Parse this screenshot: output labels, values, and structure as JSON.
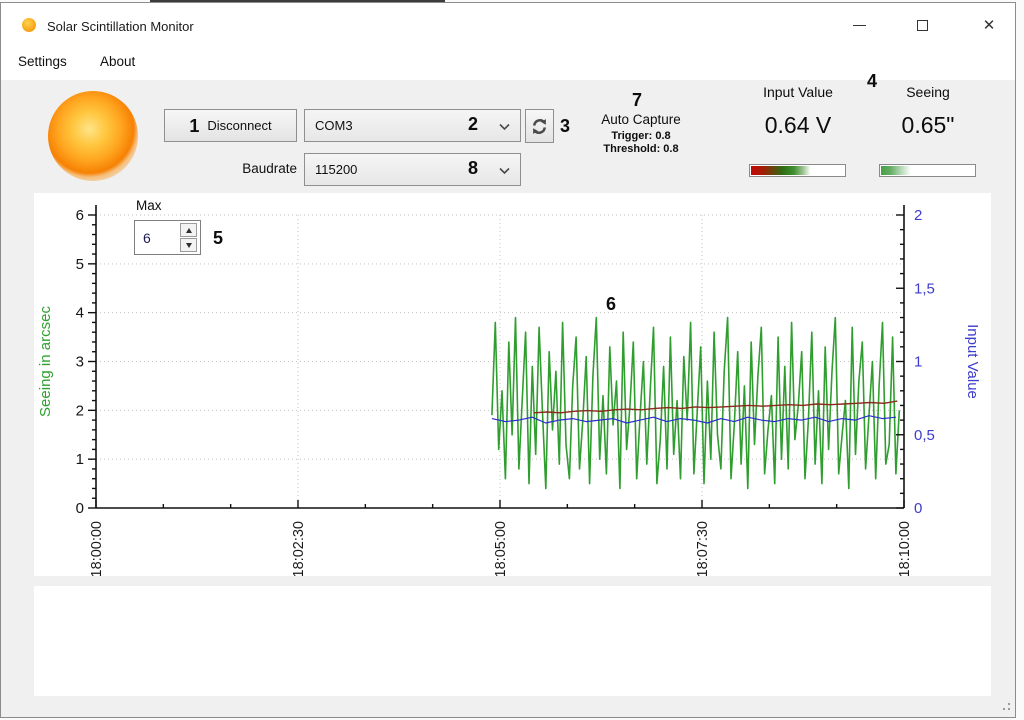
{
  "window": {
    "title": "Solar Scintillation Monitor",
    "controls": {
      "close_glyph": "✕"
    }
  },
  "menu": {
    "items": [
      {
        "label": "Settings"
      },
      {
        "label": "About"
      }
    ]
  },
  "toolbar": {
    "disconnect_label": "Disconnect",
    "port": {
      "value": "COM3"
    },
    "baudrate_label": "Baudrate",
    "baudrate": {
      "value": "115200"
    },
    "refresh_icon": "refresh-ports",
    "auto_capture": {
      "title": "Auto Capture",
      "trigger": "Trigger: 0.8",
      "threshold": "Threshold: 0.8"
    },
    "input_value": {
      "label": "Input Value",
      "value": "0.64 V"
    },
    "seeing": {
      "label": "Seeing",
      "value": "0.65\""
    }
  },
  "callouts": {
    "n1": "1",
    "n2": "2",
    "n3": "3",
    "n4": "4",
    "n5": "5",
    "n6": "6",
    "n7": "7",
    "n8": "8"
  },
  "max_spinner": {
    "label": "Max",
    "value": "6"
  },
  "chart_data": {
    "type": "line",
    "title": "",
    "grid": "dotted",
    "x_axis": {
      "range_s": [
        0,
        600
      ],
      "ticks_s": [
        0,
        150,
        300,
        450,
        600
      ],
      "tick_labels": [
        "18:00:00",
        "18:02:30",
        "18:05:00",
        "18:07:30",
        "18:10:00"
      ],
      "minor_step_s": 50
    },
    "left_axis": {
      "label": "Seeing in arcsec",
      "range": [
        0,
        6
      ],
      "major_step": 1,
      "minor_step": 0.2,
      "color": "#2fa12f",
      "tick_color": "#151515"
    },
    "right_axis": {
      "label": "Input Value",
      "range": [
        0,
        2
      ],
      "major_step": 0.5,
      "minor_step": 0.1,
      "tick_labels": [
        "0",
        "0,5",
        "1",
        "1,5",
        "2"
      ],
      "color": "#3c3ccd"
    },
    "series": [
      {
        "name": "seeing",
        "axis": "left",
        "color": "#2f9e2f",
        "width": 1.6,
        "start_s": 294,
        "step_s": 2.5,
        "values": [
          1.9,
          3.8,
          1.2,
          2.4,
          0.6,
          3.4,
          1.5,
          3.9,
          0.8,
          2.2,
          3.6,
          0.5,
          2.9,
          1.1,
          3.7,
          2.0,
          0.4,
          3.2,
          1.6,
          2.8,
          0.9,
          3.8,
          1.3,
          0.6,
          2.5,
          3.5,
          0.8,
          1.8,
          3.1,
          0.5,
          2.7,
          3.9,
          1.0,
          2.3,
          0.7,
          3.3,
          1.7,
          2.6,
          0.4,
          3.6,
          1.2,
          2.1,
          3.4,
          0.6,
          1.9,
          3.0,
          0.9,
          2.4,
          3.7,
          0.5,
          1.4,
          2.9,
          0.8,
          3.5,
          1.1,
          2.2,
          0.6,
          3.1,
          1.8,
          3.8,
          0.7,
          2.0,
          3.3,
          0.5,
          2.6,
          1.0,
          3.6,
          1.5,
          0.8,
          2.8,
          3.9,
          0.6,
          1.7,
          3.2,
          0.9,
          2.5,
          0.4,
          3.4,
          1.3,
          2.7,
          3.7,
          0.7,
          1.6,
          2.3,
          0.5,
          3.5,
          1.0,
          2.9,
          0.8,
          3.8,
          1.4,
          2.1,
          3.2,
          0.6,
          1.8,
          3.6,
          0.9,
          2.4,
          0.5,
          3.3,
          1.2,
          2.8,
          3.9,
          0.7,
          1.5,
          2.2,
          0.4,
          3.7,
          1.1,
          2.6,
          3.4,
          0.8,
          1.9,
          3.0,
          0.6,
          2.5,
          3.8,
          0.9,
          1.3,
          3.5,
          0.7,
          2.0
        ]
      },
      {
        "name": "input_value",
        "axis": "right",
        "color": "#2b2bd0",
        "width": 1.2,
        "start_s": 294,
        "step_s": 10,
        "values": [
          0.61,
          0.59,
          0.6,
          0.62,
          0.58,
          0.6,
          0.61,
          0.59,
          0.6,
          0.61,
          0.58,
          0.6,
          0.62,
          0.59,
          0.61,
          0.6,
          0.58,
          0.61,
          0.59,
          0.62,
          0.6,
          0.59,
          0.61,
          0.6,
          0.62,
          0.59,
          0.61,
          0.6,
          0.63,
          0.61,
          0.62
        ]
      },
      {
        "name": "seeing_average",
        "axis": "right",
        "color": "#8b2a1a",
        "width": 1.4,
        "start_s": 325,
        "step_s": 10,
        "values": [
          0.65,
          0.655,
          0.65,
          0.66,
          0.665,
          0.66,
          0.67,
          0.675,
          0.67,
          0.68,
          0.685,
          0.68,
          0.69,
          0.685,
          0.69,
          0.695,
          0.7,
          0.695,
          0.7,
          0.705,
          0.7,
          0.71,
          0.705,
          0.71,
          0.715,
          0.72,
          0.715,
          0.73
        ]
      }
    ]
  }
}
